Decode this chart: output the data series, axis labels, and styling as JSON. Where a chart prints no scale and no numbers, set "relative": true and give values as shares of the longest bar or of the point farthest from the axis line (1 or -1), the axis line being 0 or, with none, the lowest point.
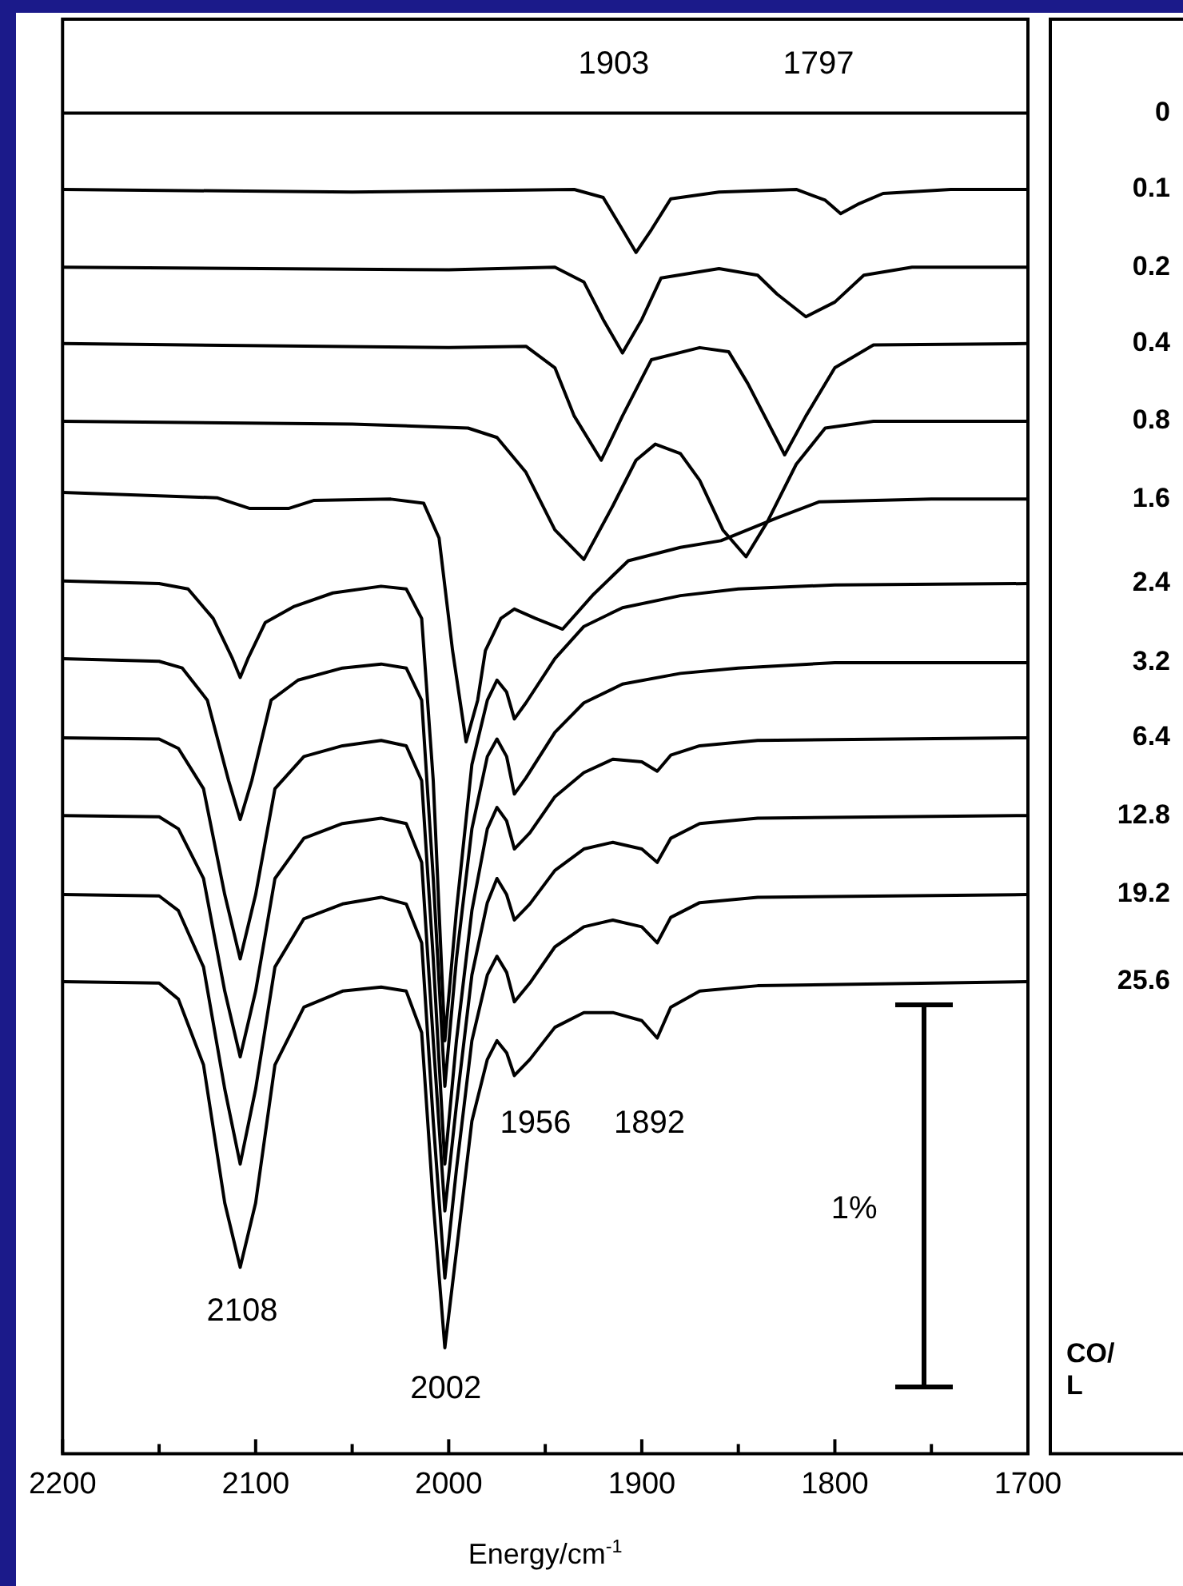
{
  "chart_data": {
    "type": "line",
    "relative": true,
    "xlabel": "Energy/cm$^{-1}$",
    "legend_title": "CO/ L",
    "legend": "right",
    "line_style": "solid",
    "marker": "none",
    "grid": false,
    "xlim": [
      2200,
      1700
    ],
    "xticks": [
      2200,
      {
        "value": 2150,
        "label": null
      },
      2100,
      {
        "value": 2050,
        "label": null
      },
      2000,
      {
        "value": 1950,
        "label": null
      },
      1900,
      {
        "value": 1850,
        "label": null
      },
      1800,
      {
        "value": 1750,
        "label": null
      },
      1700
    ],
    "annotations": [
      "1903",
      "1797",
      "2108",
      "2002",
      "1956",
      "1892",
      "1%"
    ],
    "series": [
      {
        "name": "0",
        "color": "#000000",
        "x": [
          2200,
          2100,
          2000,
          1900,
          1800,
          1700
        ],
        "values": [
          1,
          1,
          1,
          1,
          1,
          1
        ]
      },
      {
        "name": "0.1",
        "color": "#000000",
        "x": [
          2200,
          2050,
          1935,
          1920,
          1910,
          1903,
          1895,
          1885,
          1860,
          1820,
          1805,
          1797,
          1788,
          1775,
          1740,
          1700
        ],
        "values": [
          0.943,
          0.941,
          0.943,
          0.937,
          0.913,
          0.896,
          0.913,
          0.936,
          0.941,
          0.943,
          0.935,
          0.925,
          0.932,
          0.94,
          0.943,
          0.943
        ]
      },
      {
        "name": "0.2",
        "color": "#000000",
        "x": [
          2200,
          2000,
          1945,
          1930,
          1920,
          1910,
          1900,
          1890,
          1860,
          1840,
          1830,
          1815,
          1800,
          1785,
          1760,
          1700
        ],
        "values": [
          0.885,
          0.883,
          0.885,
          0.874,
          0.846,
          0.821,
          0.846,
          0.877,
          0.884,
          0.879,
          0.865,
          0.848,
          0.859,
          0.879,
          0.885,
          0.885
        ]
      },
      {
        "name": "0.4",
        "color": "#000000",
        "x": [
          2200,
          2000,
          1960,
          1945,
          1935,
          1921,
          1910,
          1895,
          1870,
          1855,
          1845,
          1826,
          1815,
          1800,
          1780,
          1700
        ],
        "values": [
          0.828,
          0.825,
          0.826,
          0.81,
          0.774,
          0.741,
          0.774,
          0.816,
          0.825,
          0.822,
          0.798,
          0.745,
          0.774,
          0.81,
          0.827,
          0.828
        ]
      },
      {
        "name": "0.8",
        "color": "#000000",
        "x": [
          2200,
          2050,
          1990,
          1975,
          1960,
          1945,
          1930,
          1915,
          1903,
          1893,
          1880,
          1870,
          1858,
          1846,
          1835,
          1820,
          1805,
          1780,
          1700
        ],
        "values": [
          0.77,
          0.768,
          0.765,
          0.758,
          0.732,
          0.689,
          0.667,
          0.707,
          0.741,
          0.753,
          0.746,
          0.726,
          0.689,
          0.669,
          0.695,
          0.738,
          0.765,
          0.77,
          0.77
        ]
      },
      {
        "name": "1.6",
        "color": "#000000",
        "x": [
          2200,
          2120,
          2103,
          2083,
          2070,
          2030,
          2013,
          2005,
          1998,
          1991,
          1985,
          1981,
          1973,
          1966,
          1955,
          1941,
          1925,
          1907,
          1880,
          1859,
          1830,
          1808,
          1750,
          1700
        ],
        "values": [
          0.717,
          0.713,
          0.705,
          0.705,
          0.711,
          0.712,
          0.709,
          0.683,
          0.599,
          0.531,
          0.562,
          0.599,
          0.623,
          0.63,
          0.623,
          0.615,
          0.641,
          0.666,
          0.676,
          0.681,
          0.698,
          0.71,
          0.712,
          0.712
        ]
      },
      {
        "name": "2.4",
        "color": "#000000",
        "x": [
          2200,
          2150,
          2135,
          2122,
          2112,
          2108,
          2104,
          2095,
          2080,
          2060,
          2035,
          2022,
          2014,
          2008,
          2002,
          1996,
          1988,
          1980,
          1975,
          1970,
          1966,
          1960,
          1945,
          1930,
          1910,
          1880,
          1850,
          1800,
          1700
        ],
        "values": [
          0.651,
          0.649,
          0.645,
          0.623,
          0.593,
          0.579,
          0.593,
          0.62,
          0.632,
          0.642,
          0.647,
          0.645,
          0.623,
          0.502,
          0.308,
          0.405,
          0.514,
          0.562,
          0.577,
          0.568,
          0.548,
          0.56,
          0.593,
          0.617,
          0.631,
          0.64,
          0.645,
          0.648,
          0.649
        ]
      },
      {
        "name": "3.2",
        "color": "#000000",
        "x": [
          2200,
          2150,
          2138,
          2125,
          2114,
          2108,
          2102,
          2092,
          2078,
          2055,
          2035,
          2022,
          2014,
          2008,
          2002,
          1996,
          1988,
          1980,
          1975,
          1970,
          1966,
          1960,
          1945,
          1930,
          1910,
          1880,
          1850,
          1800,
          1700
        ],
        "values": [
          0.593,
          0.591,
          0.586,
          0.562,
          0.502,
          0.473,
          0.502,
          0.562,
          0.577,
          0.586,
          0.589,
          0.586,
          0.562,
          0.429,
          0.274,
          0.369,
          0.466,
          0.52,
          0.533,
          0.52,
          0.492,
          0.504,
          0.538,
          0.56,
          0.574,
          0.582,
          0.586,
          0.59,
          0.59
        ]
      },
      {
        "name": "6.4",
        "color": "#000000",
        "x": [
          2200,
          2150,
          2140,
          2127,
          2116,
          2108,
          2100,
          2090,
          2075,
          2055,
          2035,
          2022,
          2014,
          2008,
          2002,
          1996,
          1988,
          1980,
          1975,
          1970,
          1966,
          1958,
          1945,
          1930,
          1915,
          1900,
          1892,
          1885,
          1870,
          1840,
          1700
        ],
        "values": [
          0.534,
          0.533,
          0.526,
          0.496,
          0.417,
          0.369,
          0.417,
          0.496,
          0.52,
          0.528,
          0.532,
          0.528,
          0.502,
          0.369,
          0.216,
          0.308,
          0.405,
          0.466,
          0.482,
          0.472,
          0.451,
          0.463,
          0.49,
          0.508,
          0.518,
          0.516,
          0.509,
          0.521,
          0.528,
          0.532,
          0.534
        ]
      },
      {
        "name": "12.8",
        "color": "#000000",
        "x": [
          2200,
          2150,
          2140,
          2127,
          2116,
          2108,
          2100,
          2090,
          2075,
          2055,
          2035,
          2022,
          2014,
          2008,
          2002,
          1996,
          1988,
          1980,
          1975,
          1970,
          1966,
          1958,
          1945,
          1930,
          1915,
          1900,
          1892,
          1885,
          1870,
          1840,
          1700
        ],
        "values": [
          0.476,
          0.475,
          0.466,
          0.429,
          0.345,
          0.296,
          0.345,
          0.429,
          0.459,
          0.47,
          0.474,
          0.47,
          0.441,
          0.308,
          0.181,
          0.26,
          0.357,
          0.411,
          0.429,
          0.417,
          0.398,
          0.41,
          0.435,
          0.451,
          0.456,
          0.451,
          0.441,
          0.459,
          0.47,
          0.474,
          0.476
        ]
      },
      {
        "name": "19.2",
        "color": "#000000",
        "x": [
          2200,
          2150,
          2140,
          2127,
          2116,
          2108,
          2100,
          2090,
          2075,
          2055,
          2035,
          2022,
          2014,
          2008,
          2002,
          1996,
          1988,
          1980,
          1975,
          1970,
          1966,
          1958,
          1945,
          1930,
          1915,
          1900,
          1892,
          1885,
          1870,
          1840,
          1700
        ],
        "values": [
          0.417,
          0.416,
          0.405,
          0.363,
          0.272,
          0.216,
          0.272,
          0.363,
          0.399,
          0.41,
          0.415,
          0.41,
          0.381,
          0.248,
          0.131,
          0.212,
          0.308,
          0.357,
          0.371,
          0.359,
          0.337,
          0.351,
          0.378,
          0.393,
          0.398,
          0.393,
          0.381,
          0.4,
          0.411,
          0.415,
          0.417
        ]
      },
      {
        "name": "25.6",
        "color": "#000000",
        "x": [
          2200,
          2150,
          2140,
          2127,
          2116,
          2108,
          2100,
          2090,
          2075,
          2055,
          2035,
          2022,
          2014,
          2008,
          2002,
          1996,
          1988,
          1980,
          1975,
          1970,
          1966,
          1958,
          1945,
          1930,
          1915,
          1900,
          1892,
          1885,
          1870,
          1840,
          1700
        ],
        "values": [
          0.352,
          0.351,
          0.339,
          0.29,
          0.187,
          0.139,
          0.187,
          0.29,
          0.333,
          0.345,
          0.348,
          0.345,
          0.314,
          0.187,
          0.079,
          0.151,
          0.248,
          0.294,
          0.308,
          0.299,
          0.282,
          0.294,
          0.318,
          0.329,
          0.329,
          0.323,
          0.31,
          0.333,
          0.345,
          0.349,
          0.352
        ]
      }
    ]
  }
}
